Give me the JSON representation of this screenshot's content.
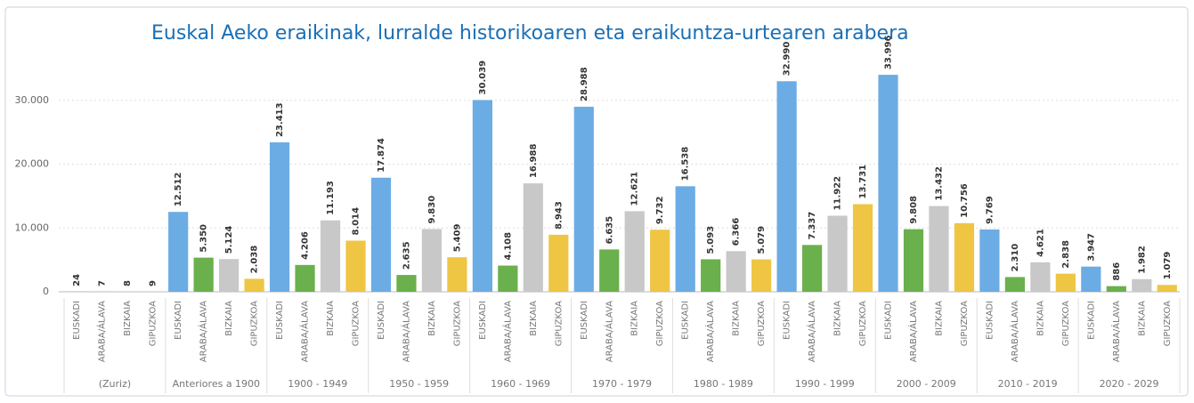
{
  "chart_data": {
    "type": "bar",
    "title": "Euskal Aeko eraikinak, lurralde historikoaren eta eraikuntza-urtearen arabera",
    "categories": [
      "(Zuriz)",
      "Anteriores a 1900",
      "1900 - 1949",
      "1950 - 1959",
      "1960 - 1969",
      "1970 - 1979",
      "1980 - 1989",
      "1990 - 1999",
      "2000 - 2009",
      "2010 - 2019",
      "2020 - 2029"
    ],
    "series": [
      {
        "name": "EUSKADI",
        "color": "#6cace4",
        "values": [
          24,
          12512,
          23413,
          17874,
          30039,
          28988,
          16538,
          32990,
          33996,
          9769,
          3947
        ],
        "value_labels": [
          "24",
          "12.512",
          "23.413",
          "17.874",
          "30.039",
          "28.988",
          "16.538",
          "32.990",
          "33.996",
          "9.769",
          "3.947"
        ]
      },
      {
        "name": "ARABA/ÁLAVA",
        "color": "#6ab04c",
        "values": [
          7,
          5350,
          4206,
          2635,
          4108,
          6635,
          5093,
          7337,
          9808,
          2310,
          886
        ],
        "value_labels": [
          "7",
          "5.350",
          "4.206",
          "2.635",
          "4.108",
          "6.635",
          "5.093",
          "7.337",
          "9.808",
          "2.310",
          "886"
        ]
      },
      {
        "name": "BIZKAIA",
        "color": "#c8c8c8",
        "values": [
          8,
          5124,
          11193,
          9830,
          16988,
          12621,
          6366,
          11922,
          13432,
          4621,
          1982
        ],
        "value_labels": [
          "8",
          "5.124",
          "11.193",
          "9.830",
          "16.988",
          "12.621",
          "6.366",
          "11.922",
          "13.432",
          "4.621",
          "1.982"
        ]
      },
      {
        "name": "GIPUZKOA",
        "color": "#eec643",
        "values": [
          9,
          2038,
          8014,
          5409,
          8943,
          9732,
          5079,
          13731,
          10756,
          2838,
          1079
        ],
        "value_labels": [
          "9",
          "2.038",
          "8.014",
          "5.409",
          "8.943",
          "9.732",
          "5.079",
          "13.731",
          "10.756",
          "2.838",
          "1.079"
        ]
      }
    ],
    "ylim": [
      0,
      40000
    ],
    "yticks": [
      0,
      {
        "value": 10000,
        "label": "10.000"
      },
      {
        "value": 20000,
        "label": "20.000"
      },
      {
        "value": 30000,
        "label": "30.000"
      }
    ],
    "grid": true
  }
}
